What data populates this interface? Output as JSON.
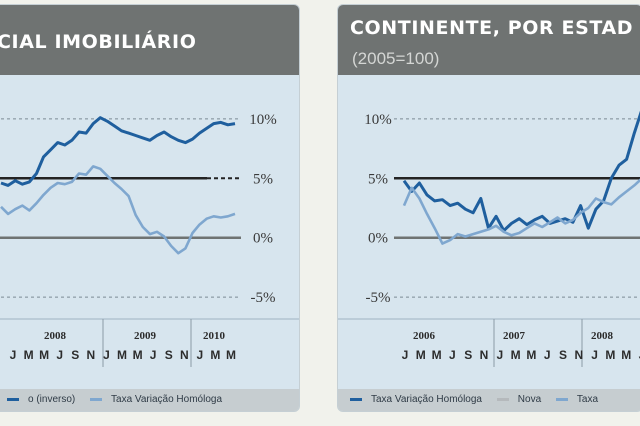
{
  "chart_data": [
    {
      "type": "line",
      "title": "CIAL IMOBILIÁRIO",
      "subtitle": "",
      "y_ticks": [
        "10%",
        "5%",
        "0%",
        "-5%"
      ],
      "y_tick_values": [
        10,
        5,
        0,
        -5
      ],
      "ylim": [
        -6,
        11
      ],
      "x_year_labels": [
        "2008",
        "2009",
        "2010"
      ],
      "x_month_labels": [
        "J",
        "M",
        "M",
        "J",
        "S",
        "N",
        "J",
        "M",
        "M",
        "J",
        "S",
        "N",
        "J",
        "M",
        "M"
      ],
      "series": [
        {
          "name": "",
          "color": "#1f5f9e",
          "values": [
            4.6,
            4.4,
            4.8,
            4.5,
            4.7,
            5.4,
            6.8,
            7.4,
            8.0,
            7.8,
            8.2,
            8.9,
            8.8,
            9.6,
            10.1,
            9.8,
            9.4,
            9.0,
            8.8,
            8.6,
            8.4,
            8.2,
            8.6,
            8.9,
            8.5,
            8.2,
            8.0,
            8.3,
            8.8,
            9.2,
            9.6,
            9.7,
            9.5,
            9.6
          ]
        },
        {
          "name": "",
          "color": "#7fa7cf",
          "values": [
            2.6,
            2.0,
            2.4,
            2.7,
            2.3,
            2.9,
            3.6,
            4.2,
            4.6,
            4.5,
            4.7,
            5.4,
            5.3,
            6.0,
            5.8,
            5.2,
            4.6,
            4.1,
            3.5,
            1.9,
            0.9,
            0.3,
            0.5,
            0.1,
            -0.7,
            -1.3,
            -0.9,
            0.4,
            1.1,
            1.6,
            1.8,
            1.7,
            1.8,
            2.0
          ]
        }
      ],
      "legend": [
        "o (inverso)",
        "Taxa Variação Homóloga"
      ]
    },
    {
      "type": "line",
      "title": "CONTINENTE, POR ESTAD",
      "subtitle": "(2005=100)",
      "y_ticks": [
        "10%",
        "5%",
        "0%",
        "-5%"
      ],
      "y_tick_values": [
        10,
        5,
        0,
        -5
      ],
      "ylim": [
        -6,
        11
      ],
      "x_year_labels": [
        "2006",
        "2007",
        "2008"
      ],
      "x_month_labels": [
        "J",
        "M",
        "M",
        "J",
        "S",
        "N",
        "J",
        "M",
        "M",
        "J",
        "S",
        "N",
        "J",
        "M",
        "M",
        "J"
      ],
      "series": [
        {
          "name": "",
          "color": "#1f5f9e",
          "values": [
            4.8,
            3.9,
            4.6,
            3.6,
            3.1,
            3.2,
            2.7,
            2.9,
            2.4,
            2.1,
            3.3,
            0.8,
            1.8,
            0.6,
            1.2,
            1.6,
            1.1,
            1.5,
            1.8,
            1.2,
            1.4,
            1.6,
            1.3,
            2.7,
            0.8,
            2.4,
            3.1,
            5.0,
            6.1,
            6.6,
            8.8,
            10.8
          ]
        },
        {
          "name": "",
          "color": "#7fa7cf",
          "values": [
            2.7,
            4.2,
            3.3,
            2.0,
            0.8,
            -0.5,
            -0.2,
            0.3,
            0.1,
            0.3,
            0.5,
            0.7,
            1.0,
            0.5,
            0.2,
            0.4,
            0.8,
            1.2,
            0.9,
            1.3,
            1.7,
            1.2,
            1.5,
            2.1,
            2.5,
            3.3,
            3.0,
            2.8,
            3.4,
            3.9,
            4.4,
            5.0
          ]
        }
      ],
      "legend": [
        "Taxa Variação Homóloga",
        "Nova",
        "Taxa"
      ]
    }
  ]
}
